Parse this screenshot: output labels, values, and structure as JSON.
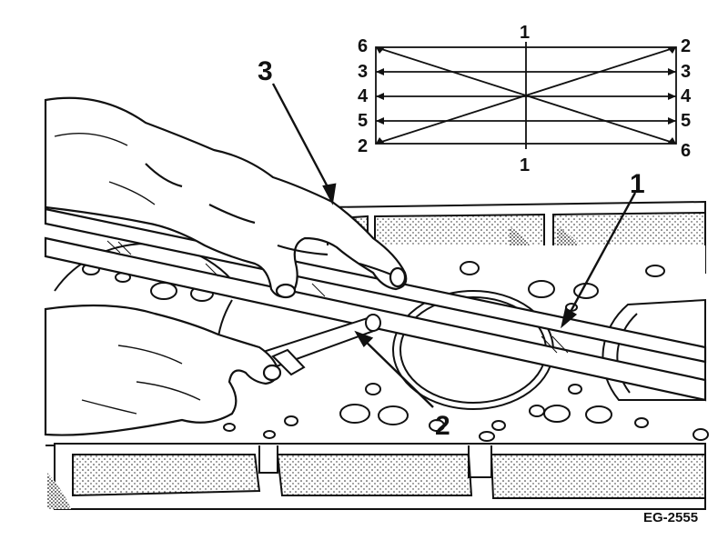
{
  "callouts": {
    "c1": "1",
    "c2": "2",
    "c3": "3"
  },
  "grid_labels": {
    "top_center": "1",
    "bottom_center": "1",
    "left": [
      "6",
      "3",
      "4",
      "5",
      "2"
    ],
    "right": [
      "2",
      "3",
      "4",
      "5",
      "6"
    ]
  },
  "figure_code": "EG-2555",
  "colors": {
    "ink": "#111111",
    "paper": "#ffffff"
  }
}
